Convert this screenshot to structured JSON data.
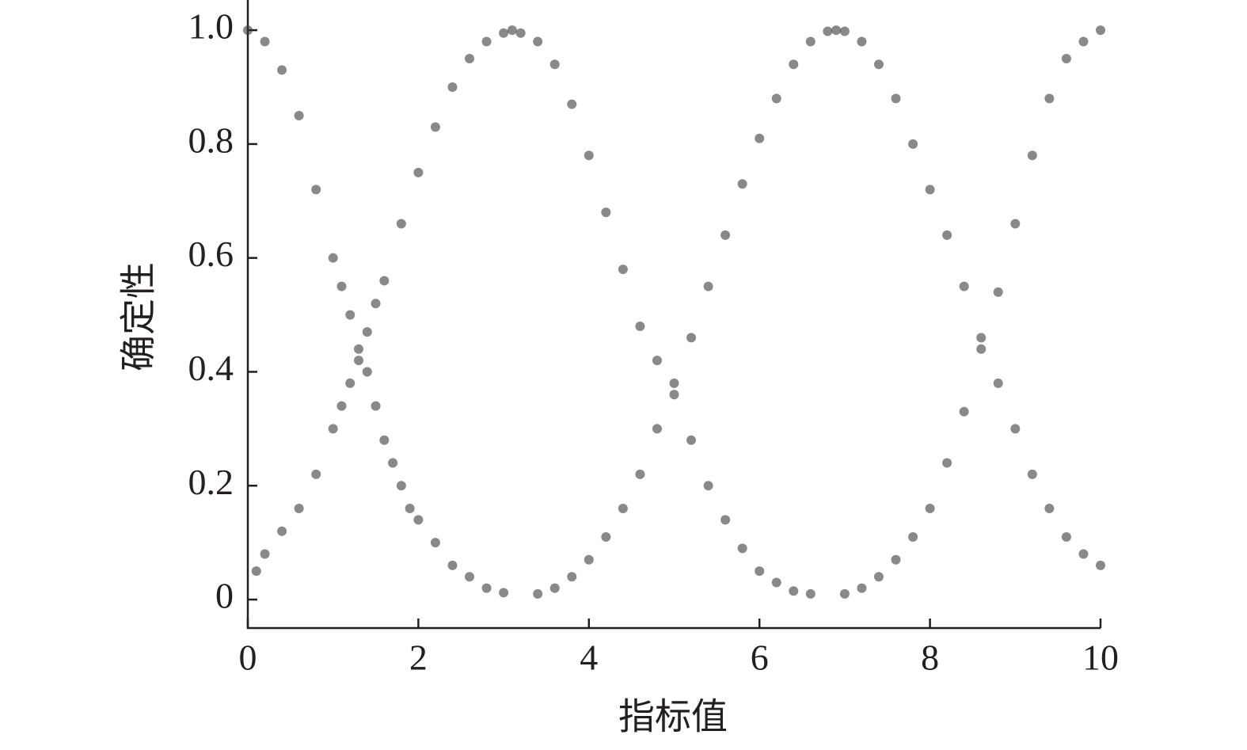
{
  "chart_data": {
    "type": "scatter",
    "x_label": "指标值",
    "y_label": "确定性",
    "color": "#3a3a3a",
    "xlim": [
      0,
      10
    ],
    "ylim": [
      -0.05,
      1.053
    ],
    "xticks": [
      0,
      2,
      4,
      6,
      8,
      10
    ],
    "yticks": [
      0,
      0.2,
      0.4,
      0.6,
      0.8,
      {
        "value": 1,
        "label": "1.0"
      }
    ],
    "x": [
      0,
      0.2,
      0.4,
      0.6,
      0.8,
      1.0,
      1.1,
      1.2,
      1.3,
      1.4,
      1.5,
      1.6,
      1.7,
      1.8,
      1.9,
      2.0,
      2.2,
      2.4,
      2.6,
      2.8,
      3.0,
      0.1,
      0.2,
      0.4,
      0.6,
      0.8,
      1.0,
      1.1,
      1.2,
      1.3,
      1.4,
      1.5,
      1.6,
      1.8,
      2.0,
      2.2,
      2.4,
      2.6,
      2.8,
      3.0,
      3.1,
      3.2,
      3.4,
      3.6,
      3.8,
      4.0,
      4.2,
      4.4,
      4.6,
      4.8,
      5.0,
      5.2,
      5.4,
      5.6,
      5.8,
      6.0,
      6.2,
      6.4,
      6.6,
      3.4,
      3.6,
      3.8,
      4.0,
      4.2,
      4.4,
      4.6,
      4.8,
      5.0,
      5.2,
      5.4,
      5.6,
      5.8,
      6.0,
      6.2,
      6.4,
      6.6,
      6.8,
      6.9,
      7.0,
      7.2,
      7.4,
      7.6,
      7.8,
      8.0,
      8.2,
      8.4,
      8.6,
      8.8,
      9.0,
      9.2,
      9.4,
      9.6,
      9.8,
      10.0,
      7.0,
      7.2,
      7.4,
      7.6,
      7.8,
      8.0,
      8.2,
      8.4,
      8.6,
      8.8,
      9.0,
      9.2,
      9.4,
      9.6,
      9.8,
      10.0
    ],
    "y": [
      1.0,
      0.98,
      0.93,
      0.85,
      0.72,
      0.6,
      0.55,
      0.5,
      0.44,
      0.4,
      0.34,
      0.28,
      0.24,
      0.2,
      0.16,
      0.14,
      0.1,
      0.06,
      0.04,
      0.02,
      0.012,
      0.05,
      0.08,
      0.12,
      0.16,
      0.22,
      0.3,
      0.34,
      0.38,
      0.42,
      0.47,
      0.52,
      0.56,
      0.66,
      0.75,
      0.83,
      0.9,
      0.95,
      0.98,
      0.995,
      1.0,
      0.995,
      0.98,
      0.94,
      0.87,
      0.78,
      0.68,
      0.58,
      0.48,
      0.42,
      0.36,
      0.28,
      0.2,
      0.14,
      0.09,
      0.05,
      0.03,
      0.015,
      0.01,
      0.01,
      0.02,
      0.04,
      0.07,
      0.11,
      0.16,
      0.22,
      0.3,
      0.38,
      0.46,
      0.55,
      0.64,
      0.73,
      0.81,
      0.88,
      0.94,
      0.98,
      0.998,
      1.0,
      0.998,
      0.98,
      0.94,
      0.88,
      0.8,
      0.72,
      0.64,
      0.55,
      0.46,
      0.38,
      0.3,
      0.22,
      0.16,
      0.11,
      0.08,
      0.06,
      0.01,
      0.02,
      0.04,
      0.07,
      0.11,
      0.16,
      0.24,
      0.33,
      0.44,
      0.54,
      0.66,
      0.78,
      0.88,
      0.95,
      0.98,
      1.0
    ]
  }
}
